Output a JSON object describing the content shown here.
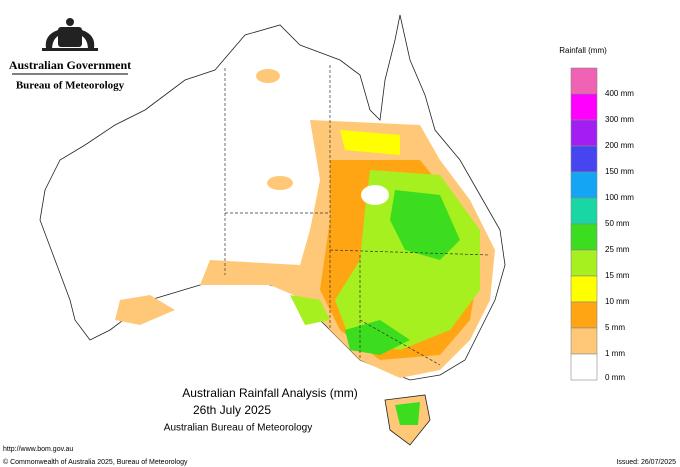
{
  "header": {
    "government": "Australian Government",
    "agency": "Bureau of Meteorology"
  },
  "legend": {
    "title": "Rainfall (mm)",
    "colors": [
      "#f062b4",
      "#ff00ff",
      "#a21ef2",
      "#4646f0",
      "#14a5f5",
      "#18d7a5",
      "#3cdc1e",
      "#a5f01e",
      "#ffff00",
      "#ffa514",
      "#ffc878",
      "#ffffff"
    ],
    "labels": [
      "400 mm",
      "300 mm",
      "200 mm",
      "150 mm",
      "100 mm",
      "50 mm",
      "25 mm",
      "15 mm",
      "10 mm",
      "5 mm",
      "1 mm",
      "0 mm"
    ]
  },
  "map_title": {
    "line1": "Australian Rainfall Analysis (mm)",
    "line2": "26th July 2025",
    "line3": "Australian Bureau of Meteorology"
  },
  "footer": {
    "url": "http://www.bom.gov.au",
    "copyright": "© Commonwealth of Australia 2025, Bureau of Meteorology",
    "issued": "Issued: 26/07/2025"
  }
}
